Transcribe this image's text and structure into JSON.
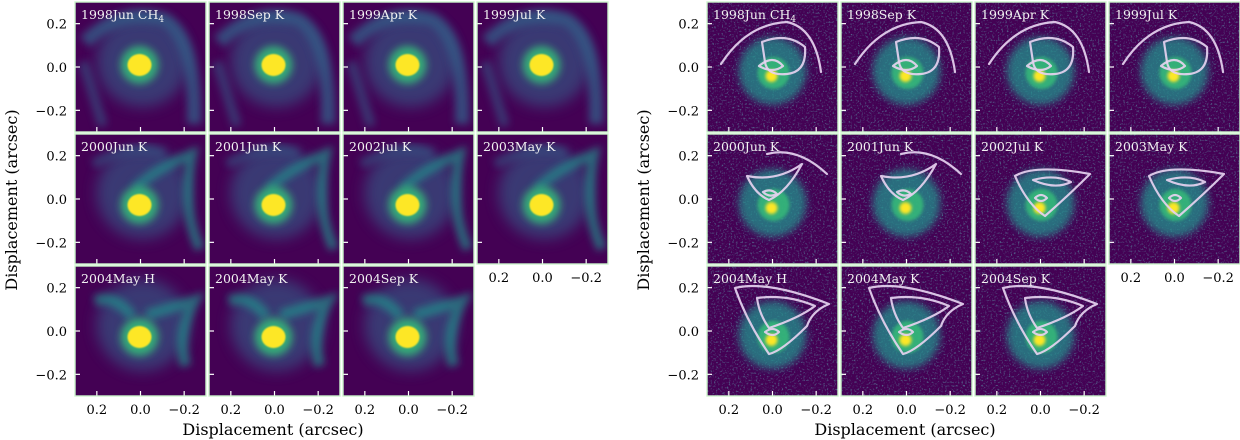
{
  "figure": {
    "axis_titles": {
      "left_x": "Displacement (arcsec)",
      "left_y": "Displacement (arcsec)",
      "right_x": "Displacement (arcsec)",
      "right_y": "Displacement (arcsec)"
    },
    "colors": {
      "background_dark": "#440154",
      "mid_blue": "#31688e",
      "teal": "#21918c",
      "green": "#35b779",
      "core_yellow": "#fde725",
      "contour": "#e6d3f0",
      "divider": "#ccf5cc"
    },
    "chart_data": {
      "type": "image-grid",
      "x_ticks": [
        "0.2",
        "0.0",
        "−0.2"
      ],
      "y_ticks": [
        "0.2",
        "0.0",
        "−0.2"
      ],
      "xlim": [
        0.3,
        -0.3
      ],
      "ylim": [
        -0.3,
        0.3
      ],
      "grids": [
        {
          "name": "model",
          "panels": [
            {
              "base": "1998Jun CH",
              "sub": "4",
              "epoch": 0,
              "row": 0,
              "col": 0
            },
            {
              "base": "1998Sep K",
              "sub": "",
              "epoch": 1,
              "row": 0,
              "col": 1
            },
            {
              "base": "1999Apr K",
              "sub": "",
              "epoch": 2,
              "row": 0,
              "col": 2
            },
            {
              "base": "1999Jul K",
              "sub": "",
              "epoch": 3,
              "row": 0,
              "col": 3
            },
            {
              "base": "2000Jun K",
              "sub": "",
              "epoch": 4,
              "row": 1,
              "col": 0
            },
            {
              "base": "2001Jun K",
              "sub": "",
              "epoch": 5,
              "row": 1,
              "col": 1
            },
            {
              "base": "2002Jul K",
              "sub": "",
              "epoch": 6,
              "row": 1,
              "col": 2
            },
            {
              "base": "2003May K",
              "sub": "",
              "epoch": 7,
              "row": 1,
              "col": 3
            },
            {
              "base": "2004May H",
              "sub": "",
              "epoch": 8,
              "row": 2,
              "col": 0
            },
            {
              "base": "2004May K",
              "sub": "",
              "epoch": 9,
              "row": 2,
              "col": 1
            },
            {
              "base": "2004Sep K",
              "sub": "",
              "epoch": 10,
              "row": 2,
              "col": 2
            }
          ]
        },
        {
          "name": "observed",
          "panels": [
            {
              "base": "1998Jun CH",
              "sub": "4",
              "epoch": 0,
              "row": 0,
              "col": 0
            },
            {
              "base": "1998Sep K",
              "sub": "",
              "epoch": 1,
              "row": 0,
              "col": 1
            },
            {
              "base": "1999Apr K",
              "sub": "",
              "epoch": 2,
              "row": 0,
              "col": 2
            },
            {
              "base": "1999Jul K",
              "sub": "",
              "epoch": 3,
              "row": 0,
              "col": 3
            },
            {
              "base": "2000Jun K",
              "sub": "",
              "epoch": 4,
              "row": 1,
              "col": 0
            },
            {
              "base": "2001Jun K",
              "sub": "",
              "epoch": 5,
              "row": 1,
              "col": 1
            },
            {
              "base": "2002Jul K",
              "sub": "",
              "epoch": 6,
              "row": 1,
              "col": 2
            },
            {
              "base": "2003May K",
              "sub": "",
              "epoch": 7,
              "row": 1,
              "col": 3
            },
            {
              "base": "2004May H",
              "sub": "",
              "epoch": 8,
              "row": 2,
              "col": 0
            },
            {
              "base": "2004May K",
              "sub": "",
              "epoch": 9,
              "row": 2,
              "col": 1
            },
            {
              "base": "2004Sep K",
              "sub": "",
              "epoch": 10,
              "row": 2,
              "col": 2
            }
          ]
        }
      ]
    }
  }
}
